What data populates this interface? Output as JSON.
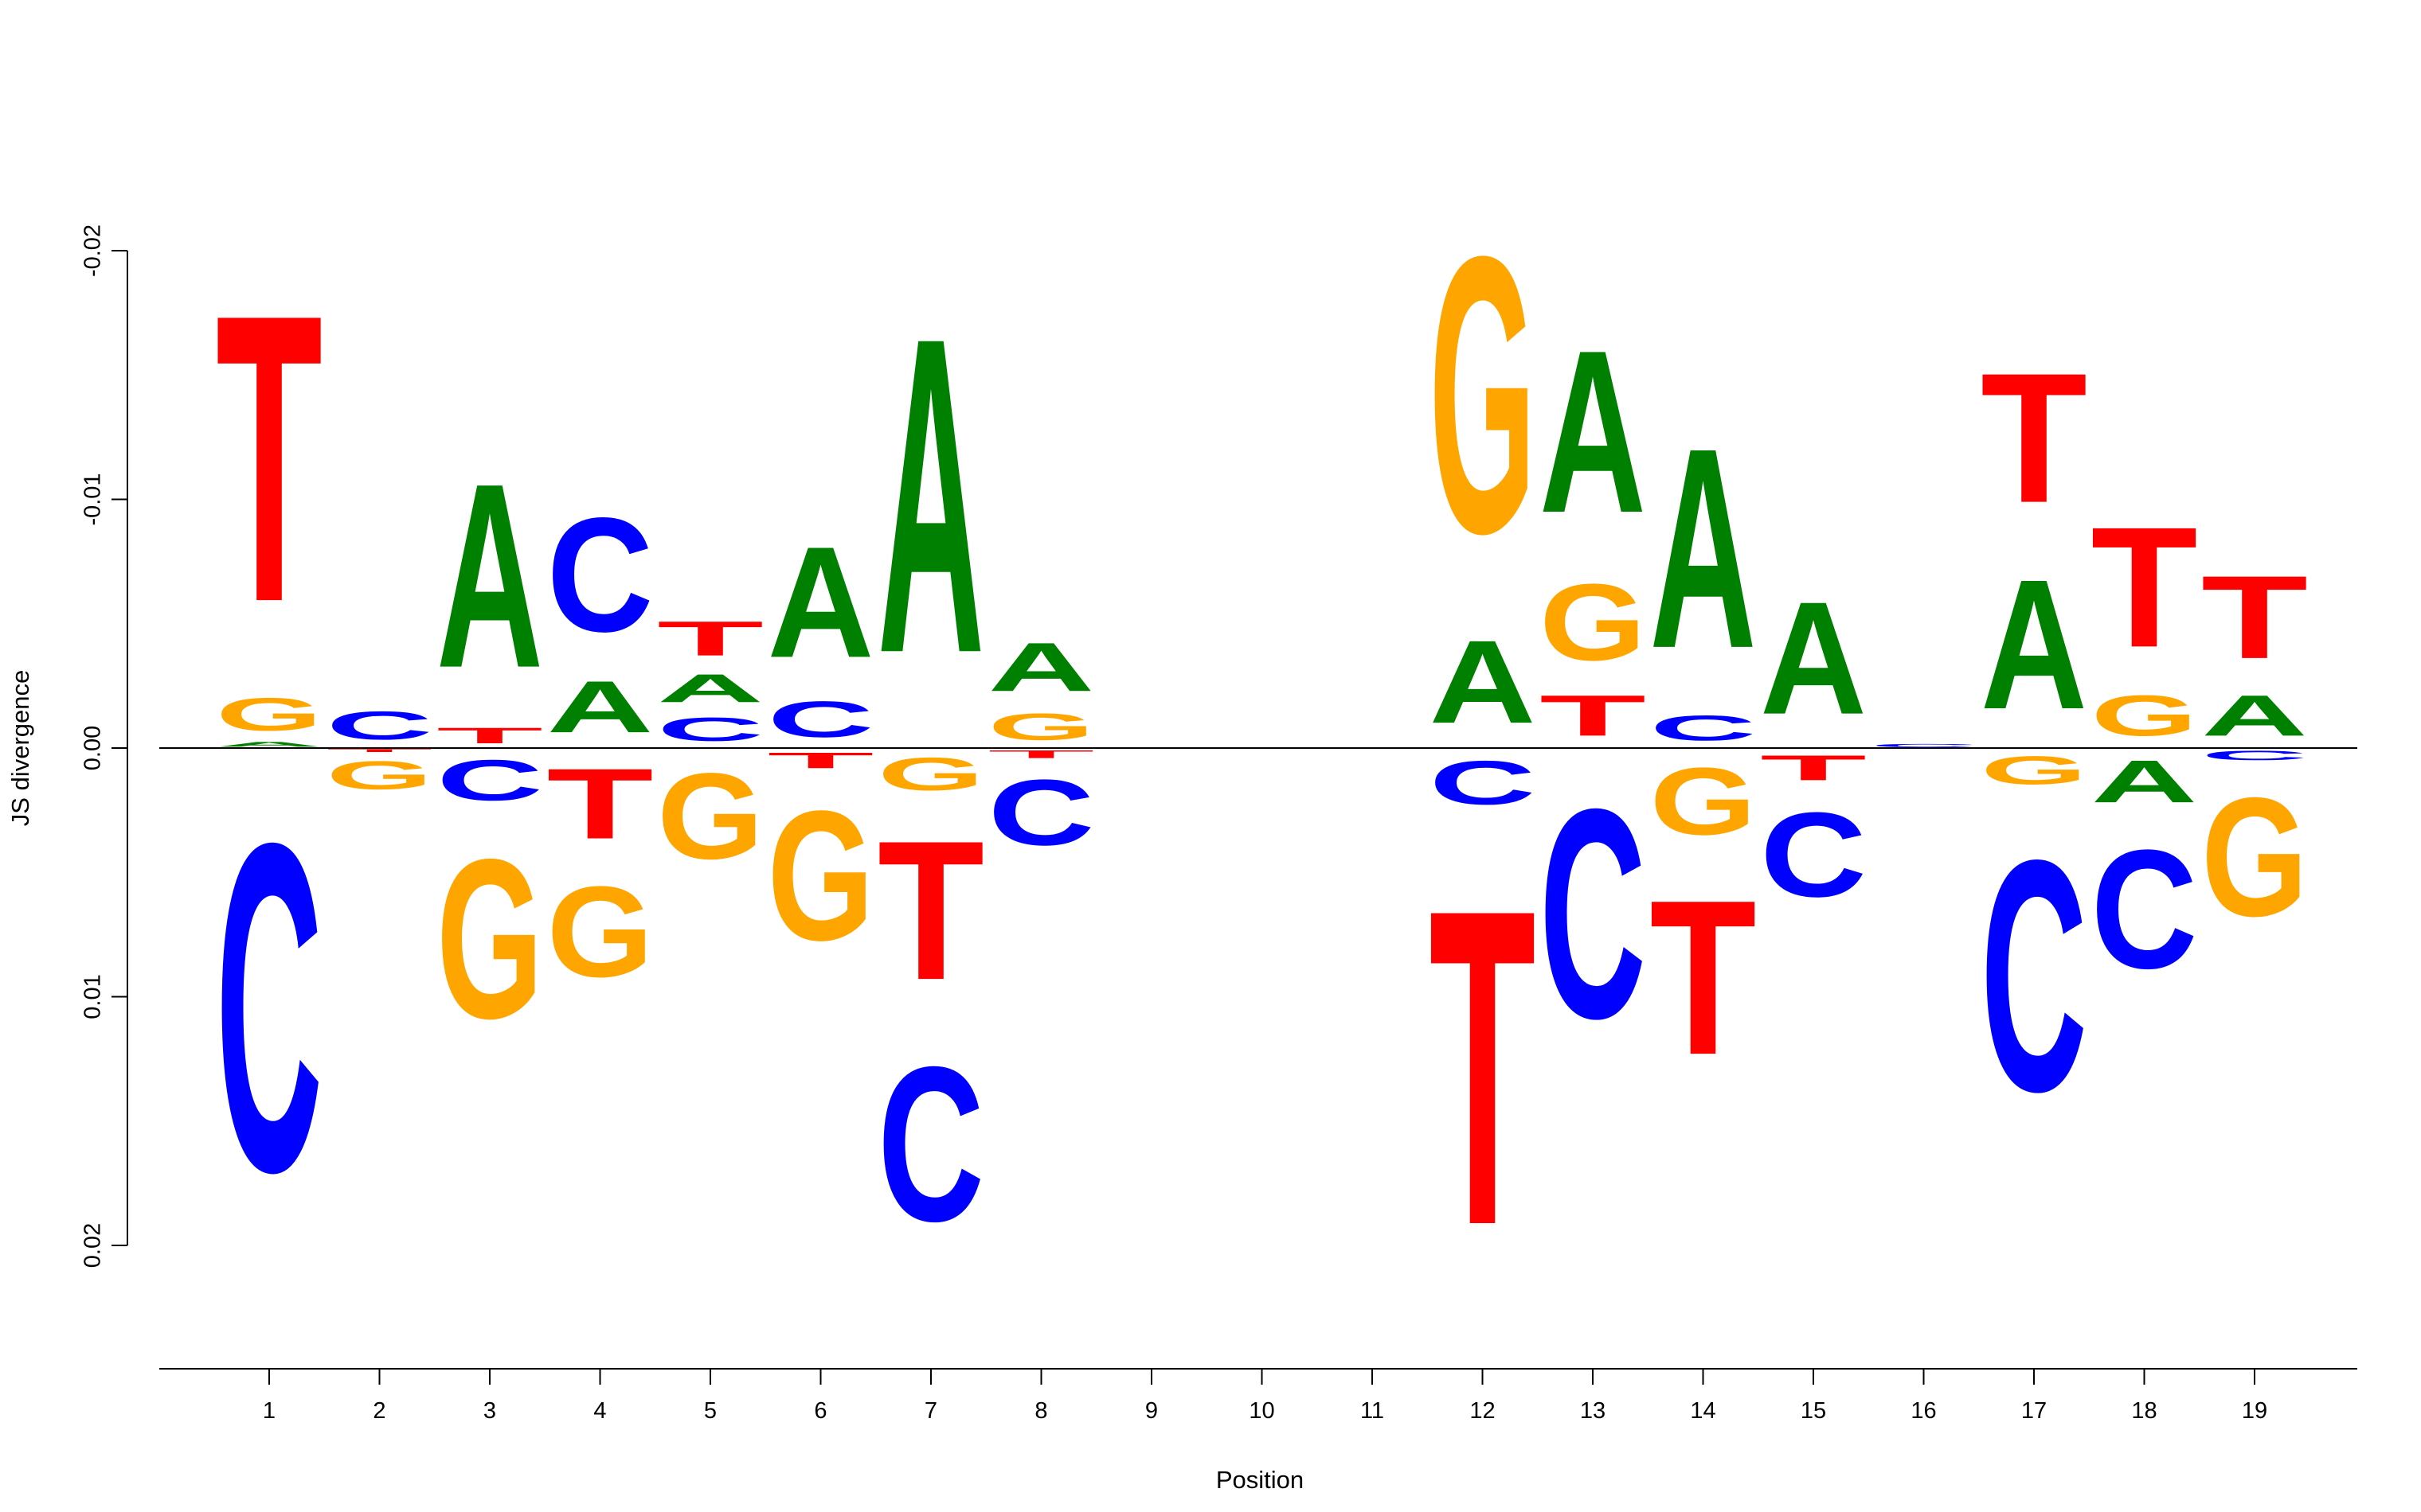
{
  "chart_data": {
    "type": "sequence-logo",
    "title": "",
    "xlabel": "Position",
    "ylabel": "JS divergence",
    "ylim": [
      0.025,
      -0.025
    ],
    "y_ticks": [
      {
        "value": -0.02,
        "label": "-0.02"
      },
      {
        "value": -0.01,
        "label": "-0.01"
      },
      {
        "value": 0,
        "label": "0.00"
      },
      {
        "value": 0.01,
        "label": "0.01"
      },
      {
        "value": 0.02,
        "label": "0.02"
      }
    ],
    "x_ticks": [
      "1",
      "2",
      "3",
      "4",
      "5",
      "6",
      "7",
      "8",
      "9",
      "10",
      "11",
      "12",
      "13",
      "14",
      "15",
      "16",
      "17",
      "18",
      "19"
    ],
    "colors": {
      "A": "#008000",
      "C": "#0000ff",
      "G": "#ffa500",
      "T": "#ff0000"
    },
    "positions": [
      {
        "position": 1,
        "up": [
          [
            "A",
            0.0003
          ],
          [
            "G",
            0.0021
          ],
          [
            "T",
            0.0184
          ]
        ],
        "down": [
          [
            "C",
            0.021
          ]
        ]
      },
      {
        "position": 2,
        "up": [
          [
            "C",
            0.0018
          ]
        ],
        "down": [
          [
            "T",
            0.0002
          ],
          [
            "G",
            0.0018
          ]
        ]
      },
      {
        "position": 3,
        "up": [
          [
            "T",
            0.001
          ],
          [
            "A",
            0.0118
          ]
        ],
        "down": [
          [
            "C",
            0.0026
          ],
          [
            "G",
            0.0102
          ]
        ]
      },
      {
        "position": 4,
        "up": [
          [
            "A",
            0.0033
          ],
          [
            "C",
            0.0073
          ]
        ],
        "down": [
          [
            "T",
            0.0045
          ],
          [
            "G",
            0.0058
          ]
        ]
      },
      {
        "position": 5,
        "up": [
          [
            "C",
            0.0015
          ],
          [
            "A",
            0.0018
          ],
          [
            "T",
            0.0022
          ]
        ],
        "down": [
          [
            "G",
            0.0055
          ]
        ]
      },
      {
        "position": 6,
        "up": [
          [
            "C",
            0.0023
          ],
          [
            "A",
            0.0071
          ]
        ],
        "down": [
          [
            "T",
            0.001
          ],
          [
            "G",
            0.0083
          ]
        ]
      },
      {
        "position": 7,
        "up": [
          [
            "A",
            0.0202
          ]
        ],
        "down": [
          [
            "G",
            0.0021
          ],
          [
            "T",
            0.0089
          ],
          [
            "C",
            0.0099
          ]
        ]
      },
      {
        "position": 8,
        "up": [
          [
            "G",
            0.0017
          ],
          [
            "A",
            0.0031
          ]
        ],
        "down": [
          [
            "T",
            0.0005
          ],
          [
            "C",
            0.0042
          ]
        ]
      },
      {
        "position": 9,
        "up": [],
        "down": []
      },
      {
        "position": 10,
        "up": [],
        "down": []
      },
      {
        "position": 11,
        "up": [],
        "down": []
      },
      {
        "position": 12,
        "up": [
          [
            "A",
            0.0053
          ],
          [
            "G",
            0.0177
          ]
        ],
        "down": [
          [
            "C",
            0.0028
          ],
          [
            "T",
            0.0202
          ]
        ]
      },
      {
        "position": 13,
        "up": [
          [
            "T",
            0.0026
          ],
          [
            "G",
            0.0049
          ],
          [
            "A",
            0.0104
          ]
        ],
        "down": [
          [
            "C",
            0.0134
          ]
        ]
      },
      {
        "position": 14,
        "up": [
          [
            "C",
            0.0016
          ],
          [
            "A",
            0.0128
          ]
        ],
        "down": [
          [
            "G",
            0.0043
          ],
          [
            "T",
            0.0099
          ]
        ]
      },
      {
        "position": 15,
        "up": [
          [
            "A",
            0.0072
          ]
        ],
        "down": [
          [
            "T",
            0.0016
          ],
          [
            "C",
            0.0054
          ]
        ]
      },
      {
        "position": 16,
        "up": [
          [
            "C",
            0.0002
          ]
        ],
        "down": []
      },
      {
        "position": 17,
        "up": [
          [
            "A",
            0.0083
          ],
          [
            "T",
            0.0083
          ]
        ],
        "down": [
          [
            "G",
            0.0018
          ],
          [
            "C",
            0.0148
          ]
        ]
      },
      {
        "position": 18,
        "up": [
          [
            "G",
            0.0026
          ],
          [
            "T",
            0.0077
          ]
        ],
        "down": [
          [
            "A",
            0.0027
          ],
          [
            "C",
            0.0076
          ]
        ]
      },
      {
        "position": 19,
        "up": [
          [
            "A",
            0.0026
          ],
          [
            "T",
            0.0053
          ]
        ],
        "down": [
          [
            "C",
            0.0006
          ],
          [
            "G",
            0.0076
          ]
        ]
      }
    ]
  }
}
